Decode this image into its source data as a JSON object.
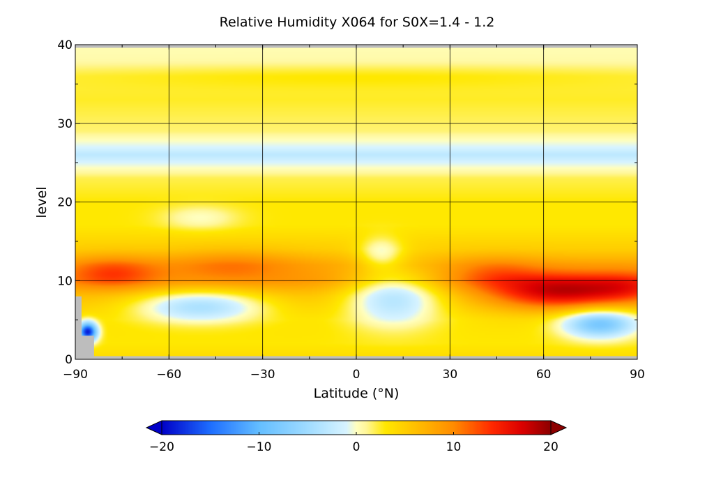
{
  "chart_data": {
    "type": "heatmap",
    "title": "Relative Humidity X064 for S0X=1.4 - 1.2",
    "xlabel": "Latitude (°N)",
    "ylabel": "level",
    "xlim": [
      -90,
      90
    ],
    "ylim": [
      0,
      40
    ],
    "x_ticks": [
      -90,
      -60,
      -30,
      0,
      30,
      60,
      90
    ],
    "x_tick_labels": [
      "−90",
      "−60",
      "−30",
      "0",
      "30",
      "60",
      "90"
    ],
    "y_ticks": [
      0,
      10,
      20,
      30,
      40
    ],
    "y_tick_labels": [
      "0",
      "10",
      "20",
      "30",
      "40"
    ],
    "grid": true,
    "colorbar": {
      "min": -20,
      "max": 20,
      "ticks": [
        -20,
        -10,
        0,
        10,
        20
      ],
      "tick_labels": [
        "−20",
        "−10",
        "0",
        "10",
        "20"
      ],
      "extend": "both",
      "placement": "bottom",
      "stops": [
        {
          "v": -20,
          "color": "#0000c8"
        },
        {
          "v": -15,
          "color": "#1e6eff"
        },
        {
          "v": -10,
          "color": "#64beff"
        },
        {
          "v": -5,
          "color": "#a0dcff"
        },
        {
          "v": -1,
          "color": "#d8f4ff"
        },
        {
          "v": 0,
          "color": "#ffffc0"
        },
        {
          "v": 1,
          "color": "#fff79a"
        },
        {
          "v": 3,
          "color": "#ffe800"
        },
        {
          "v": 7,
          "color": "#ffb400"
        },
        {
          "v": 10,
          "color": "#ff8c00"
        },
        {
          "v": 14,
          "color": "#ff2800"
        },
        {
          "v": 17,
          "color": "#dc0000"
        },
        {
          "v": 20,
          "color": "#8c0000"
        }
      ]
    },
    "level_profile": [
      {
        "level": 0,
        "value": 4
      },
      {
        "level": 2,
        "value": 3
      },
      {
        "level": 5,
        "value": 3.5
      },
      {
        "level": 8,
        "value": 6
      },
      {
        "level": 10,
        "value": 9
      },
      {
        "level": 12,
        "value": 8
      },
      {
        "level": 14,
        "value": 5
      },
      {
        "level": 17,
        "value": 3
      },
      {
        "level": 20,
        "value": 3
      },
      {
        "level": 23,
        "value": 2
      },
      {
        "level": 25,
        "value": -1
      },
      {
        "level": 26,
        "value": -3
      },
      {
        "level": 27,
        "value": -1
      },
      {
        "level": 29,
        "value": 1.5
      },
      {
        "level": 33,
        "value": 2.5
      },
      {
        "level": 36,
        "value": 2
      },
      {
        "level": 38,
        "value": 0.5
      },
      {
        "level": 40,
        "value": 0.3
      }
    ],
    "anomalies": [
      {
        "lat": 65,
        "level": 8.5,
        "lat_radius": 22,
        "level_radius": 2.2,
        "value": 11
      },
      {
        "lat": 88,
        "level": 9,
        "lat_radius": 14,
        "level_radius": 2,
        "value": 5
      },
      {
        "lat": 45,
        "level": 11,
        "lat_radius": 14,
        "level_radius": 2,
        "value": 3
      },
      {
        "lat": -78,
        "level": 11,
        "lat_radius": 14,
        "level_radius": 2,
        "value": 5
      },
      {
        "lat": -40,
        "level": 12,
        "lat_radius": 20,
        "level_radius": 2,
        "value": 3
      },
      {
        "lat": -50,
        "level": 6.8,
        "lat_radius": 20,
        "level_radius": 2,
        "value": -9
      },
      {
        "lat": 12,
        "level": 8,
        "lat_radius": 15,
        "level_radius": 3.5,
        "value": -9
      },
      {
        "lat": 8,
        "level": 13.5,
        "lat_radius": 7,
        "level_radius": 2,
        "value": -5
      },
      {
        "lat": 78,
        "level": 4.5,
        "lat_radius": 12,
        "level_radius": 1.8,
        "value": -12
      },
      {
        "lat": -86,
        "level": 3.5,
        "lat_radius": 3,
        "level_radius": 1.2,
        "value": -22
      },
      {
        "lat": -50,
        "level": 18,
        "lat_radius": 12,
        "level_radius": 1.5,
        "value": -3
      },
      {
        "lat": 0,
        "level": 36,
        "lat_radius": 90,
        "level_radius": 1.5,
        "value": 1
      }
    ],
    "missing_regions": [
      {
        "lat": [
          -90,
          90
        ],
        "level": [
          39.6,
          40
        ]
      },
      {
        "lat": [
          -90,
          90
        ],
        "level": [
          0,
          0.4
        ]
      },
      {
        "lat": [
          -90,
          -88
        ],
        "level": [
          0,
          8
        ]
      },
      {
        "lat": [
          -90,
          -84
        ],
        "level": [
          0,
          3
        ]
      }
    ]
  }
}
